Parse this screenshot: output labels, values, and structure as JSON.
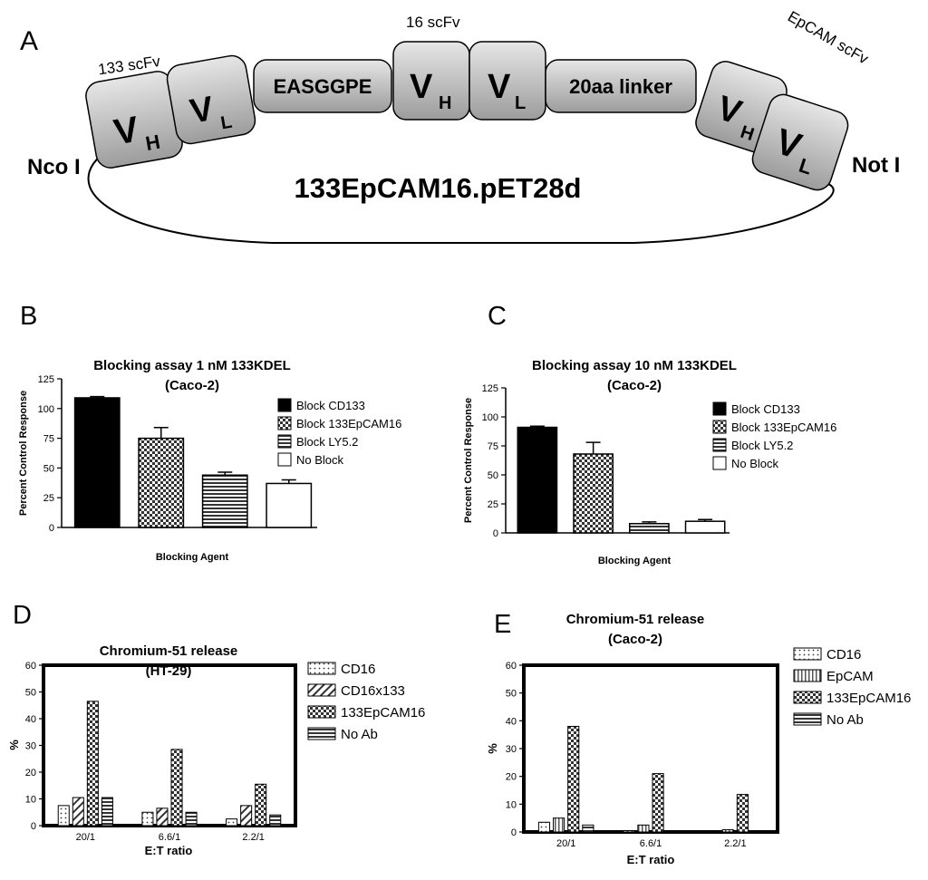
{
  "panel_a": {
    "label": "A",
    "scfv_133": "133 scFv",
    "scfv_16": "16 scFv",
    "scfv_epcam": "EpCAM scFv",
    "linker_1": "EASGGPE",
    "linker_2": "20aa linker",
    "vh": "V",
    "vh_sub": "H",
    "vl": "V",
    "vl_sub": "L",
    "site_left": "Nco I",
    "site_right": "Not I",
    "plasmid": "133EpCAM16.pET28d"
  },
  "colors": {
    "bar_black": "#000000",
    "bar_white": "#ffffff",
    "box_light": "#dcdcdc",
    "box_dark": "#a9a9a9"
  },
  "chart_data": [
    {
      "id": "B",
      "panel_label": "B",
      "type": "bar",
      "title": "Blocking assay 1 nM 133KDEL",
      "subtitle": "(Caco-2)",
      "xlabel": "Blocking Agent",
      "ylabel": "Percent Control Response",
      "ylim": [
        0,
        125
      ],
      "yticks": [
        "0",
        "25",
        "50",
        "75",
        "100",
        "125"
      ],
      "series": [
        {
          "name": "Block CD133",
          "value": 109,
          "error": 1,
          "fill": "black"
        },
        {
          "name": "Block 133EpCAM16",
          "value": 75,
          "error": 9,
          "fill": "checker"
        },
        {
          "name": "Block LY5.2",
          "value": 44,
          "error": 2.5,
          "fill": "hlines"
        },
        {
          "name": "No Block",
          "value": 37,
          "error": 3,
          "fill": "white"
        }
      ],
      "legend": "right"
    },
    {
      "id": "C",
      "panel_label": "C",
      "type": "bar",
      "title": "Blocking assay 10 nM 133KDEL",
      "subtitle": "(Caco-2)",
      "xlabel": "Blocking Agent",
      "ylabel": "Percent Control Response",
      "ylim": [
        0,
        125
      ],
      "yticks": [
        "0",
        "25",
        "50",
        "75",
        "100",
        "125"
      ],
      "series": [
        {
          "name": "Block CD133",
          "value": 91,
          "error": 1,
          "fill": "black"
        },
        {
          "name": "Block 133EpCAM16",
          "value": 68,
          "error": 10,
          "fill": "checker"
        },
        {
          "name": "Block LY5.2",
          "value": 8,
          "error": 1.5,
          "fill": "hlines"
        },
        {
          "name": "No Block",
          "value": 10,
          "error": 1.5,
          "fill": "white"
        }
      ],
      "legend": "right"
    },
    {
      "id": "D",
      "panel_label": "D",
      "type": "bar",
      "title": "Chromium-51 release",
      "subtitle": "(HT-29)",
      "xlabel": "E:T ratio",
      "ylabel": "%",
      "ylim": [
        0,
        60
      ],
      "yticks": [
        "0",
        "10",
        "20",
        "30",
        "40",
        "50",
        "60"
      ],
      "categories": [
        "20/1",
        "6.6/1",
        "2.2/1"
      ],
      "series": [
        {
          "name": "CD16",
          "values": [
            7.5,
            5,
            2.5
          ],
          "fill": "dots"
        },
        {
          "name": "CD16x133",
          "values": [
            10.5,
            6.5,
            7.5
          ],
          "fill": "diag"
        },
        {
          "name": "133EpCAM16",
          "values": [
            46.5,
            28.5,
            15.5
          ],
          "fill": "checker"
        },
        {
          "name": "No Ab",
          "values": [
            10.5,
            5,
            4
          ],
          "fill": "hlines"
        }
      ],
      "legend": "right"
    },
    {
      "id": "E",
      "panel_label": "E",
      "type": "bar",
      "title": "Chromium-51 release",
      "subtitle": "(Caco-2)",
      "xlabel": "E:T ratio",
      "ylabel": "%",
      "ylim": [
        0,
        60
      ],
      "yticks": [
        "0",
        "10",
        "20",
        "30",
        "40",
        "50",
        "60"
      ],
      "categories": [
        "20/1",
        "6.6/1",
        "2.2/1"
      ],
      "series": [
        {
          "name": "CD16",
          "values": [
            3.5,
            0.5,
            0
          ],
          "fill": "dots"
        },
        {
          "name": "EpCAM",
          "values": [
            5,
            2.5,
            0.8
          ],
          "fill": "vlines"
        },
        {
          "name": "133EpCAM16",
          "values": [
            38,
            21,
            13.5
          ],
          "fill": "checker"
        },
        {
          "name": "No Ab",
          "values": [
            2.5,
            0,
            0
          ],
          "fill": "hlines"
        }
      ],
      "legend": "right"
    }
  ]
}
